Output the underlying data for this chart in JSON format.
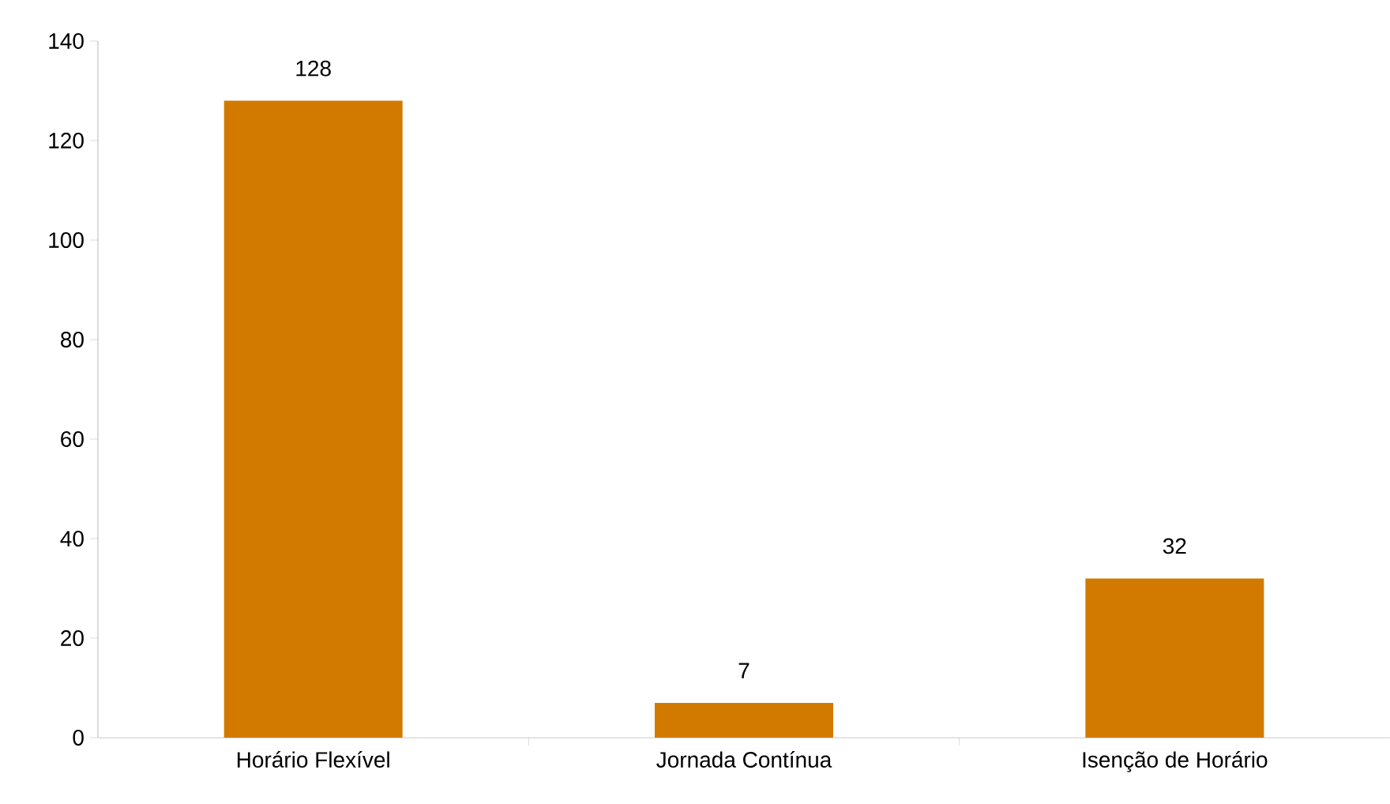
{
  "chart_data": {
    "type": "bar",
    "categories": [
      "Horário Flexível",
      "Jornada Contínua",
      "Isenção de Horário"
    ],
    "values": [
      128,
      7,
      32
    ],
    "color": "#d27a00",
    "ylim": [
      0,
      140
    ],
    "yticks": [
      0,
      20,
      40,
      60,
      80,
      100,
      120,
      140
    ],
    "data_labels": true,
    "grid": false
  }
}
